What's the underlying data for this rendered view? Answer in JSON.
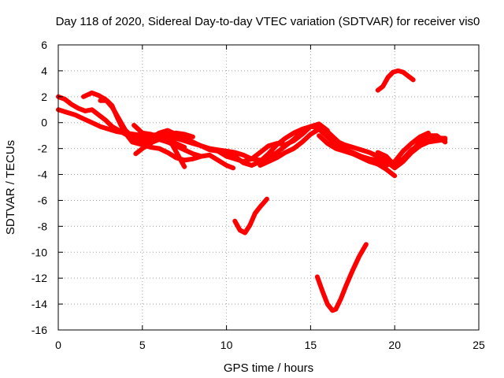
{
  "chart_data": {
    "type": "line",
    "title": "Day 118 of 2020, Sidereal Day-to-day VTEC variation (SDTVAR) for receiver vis0",
    "xlabel": "GPS time / hours",
    "ylabel": "SDTVAR / TECUs",
    "xlim": [
      0,
      25
    ],
    "ylim": [
      -16,
      6
    ],
    "xticks": [
      0,
      5,
      10,
      15,
      20,
      25
    ],
    "yticks": [
      -16,
      -14,
      -12,
      -10,
      -8,
      -6,
      -4,
      -2,
      0,
      2,
      4,
      6
    ],
    "grid": true,
    "legend": "none",
    "color": "#ff0000",
    "series": [
      {
        "x": [
          0.0,
          0.5,
          1.0,
          1.5,
          2.0,
          2.5,
          3.0,
          3.5,
          4.0,
          4.5,
          5.0,
          5.5,
          6.0,
          6.5,
          7.0,
          7.5,
          8.0,
          8.5,
          9.0,
          9.5,
          10.0,
          10.5,
          11.0,
          11.5,
          12.0,
          12.5,
          13.0,
          13.5,
          14.0,
          14.5,
          15.0,
          15.5,
          16.0,
          16.5,
          17.0,
          17.5,
          18.0,
          18.5,
          19.0,
          19.5,
          20.0,
          20.5,
          21.0,
          21.5,
          22.0,
          22.5,
          23.0
        ],
        "y": [
          1.0,
          0.8,
          0.6,
          0.3,
          0.0,
          -0.3,
          -0.5,
          -0.7,
          -0.8,
          -0.9,
          -1.0,
          -1.0,
          -0.9,
          -1.0,
          -1.2,
          -1.4,
          -1.6,
          -1.8,
          -2.0,
          -2.1,
          -2.2,
          -2.3,
          -2.5,
          -2.8,
          -2.9,
          -2.7,
          -2.3,
          -1.8,
          -1.3,
          -0.7,
          -0.3,
          -0.4,
          -0.9,
          -1.4,
          -1.7,
          -1.9,
          -2.1,
          -2.3,
          -2.6,
          -3.0,
          -3.5,
          -3.0,
          -2.3,
          -1.8,
          -1.5,
          -1.4,
          -1.3
        ]
      },
      {
        "x": [
          0.0,
          0.4,
          0.8,
          1.2,
          1.6,
          2.0,
          2.4,
          2.8,
          3.2,
          3.6,
          4.0,
          4.5,
          5.0,
          5.5,
          6.0,
          6.5,
          7.0,
          7.5
        ],
        "y": [
          2.0,
          1.8,
          1.4,
          1.1,
          0.9,
          1.0,
          0.6,
          0.2,
          -0.3,
          -0.6,
          -0.9,
          -1.2,
          -1.3,
          -1.1,
          -1.0,
          -1.2,
          -1.6,
          -1.9
        ]
      },
      {
        "x": [
          1.5,
          2.0,
          2.4,
          2.8,
          3.2,
          3.6,
          4.0,
          4.4,
          4.8,
          5.2,
          5.6,
          6.0,
          6.5,
          7.0,
          7.5,
          8.0,
          8.5
        ],
        "y": [
          2.0,
          2.3,
          2.1,
          1.8,
          1.2,
          0.3,
          -0.6,
          -1.1,
          -1.4,
          -1.6,
          -1.5,
          -1.3,
          -1.5,
          -1.8,
          -2.1,
          -2.4,
          -2.6
        ]
      },
      {
        "x": [
          2.5,
          2.9,
          3.2,
          3.5,
          3.8,
          4.1,
          4.4,
          4.7,
          5.0,
          5.5,
          6.0,
          6.5,
          7.0,
          7.5,
          8.0,
          8.5,
          9.0,
          9.5,
          10.0,
          10.4
        ],
        "y": [
          1.7,
          1.7,
          1.3,
          0.4,
          -0.4,
          -1.0,
          -1.5,
          -1.6,
          -1.7,
          -1.9,
          -2.0,
          -2.3,
          -2.7,
          -2.9,
          -2.8,
          -2.6,
          -2.5,
          -2.9,
          -3.3,
          -3.5
        ]
      },
      {
        "x": [
          4.5,
          5.0,
          5.5,
          6.0,
          6.5,
          7.0,
          7.5,
          8.0
        ],
        "y": [
          -0.2,
          -0.8,
          -0.9,
          -1.1,
          -1.0,
          -0.8,
          -0.9,
          -1.1
        ]
      },
      {
        "x": [
          4.6,
          5.0,
          5.5,
          6.0,
          6.3,
          6.6,
          6.9,
          7.2,
          7.5
        ],
        "y": [
          -2.4,
          -2.0,
          -1.6,
          -0.8,
          -0.8,
          -1.3,
          -2.0,
          -2.7,
          -3.4
        ]
      },
      {
        "x": [
          5.0,
          5.5,
          6.0,
          6.5,
          7.0,
          7.5,
          8.0,
          8.5,
          9.0,
          9.5,
          10.0,
          10.5,
          11.0,
          11.5,
          12.0,
          12.5,
          13.0,
          13.5,
          14.0,
          14.5,
          15.0,
          15.5,
          16.0
        ],
        "y": [
          -1.4,
          -1.2,
          -0.8,
          -0.6,
          -0.9,
          -1.2,
          -1.5,
          -1.8,
          -2.1,
          -2.2,
          -2.6,
          -2.8,
          -3.0,
          -2.8,
          -2.3,
          -1.8,
          -1.6,
          -1.7,
          -1.4,
          -0.9,
          -0.3,
          -0.1,
          -0.6
        ]
      },
      {
        "x": [
          10.0,
          10.5,
          11.0,
          11.5,
          12.0,
          12.5,
          13.0,
          13.5,
          14.0,
          14.5,
          15.0,
          15.5,
          16.0,
          16.5,
          17.0,
          17.5,
          18.0,
          18.5,
          19.0,
          19.5,
          20.0
        ],
        "y": [
          -2.4,
          -2.6,
          -3.1,
          -3.3,
          -3.0,
          -2.4,
          -1.7,
          -1.2,
          -0.8,
          -0.5,
          -0.3,
          -0.2,
          -0.7,
          -1.3,
          -1.9,
          -2.4,
          -2.7,
          -3.0,
          -3.2,
          -3.6,
          -4.1
        ]
      },
      {
        "x": [
          12.0,
          12.5,
          13.0,
          13.5,
          14.0,
          14.5,
          15.0,
          15.5,
          16.0,
          16.5,
          17.0,
          17.5,
          18.0,
          18.5,
          19.0,
          19.5,
          20.0,
          20.5,
          21.0,
          21.5,
          22.0
        ],
        "y": [
          -3.3,
          -3.0,
          -2.7,
          -2.3,
          -2.0,
          -1.5,
          -0.9,
          -0.5,
          -1.1,
          -1.7,
          -2.1,
          -2.3,
          -2.6,
          -2.9,
          -3.1,
          -3.3,
          -3.0,
          -2.2,
          -1.6,
          -1.1,
          -0.8
        ]
      },
      {
        "x": [
          15.5,
          16.0,
          16.5,
          17.0,
          17.5,
          18.0,
          18.5,
          19.0,
          19.5,
          20.0,
          20.5,
          21.0,
          21.5,
          22.0,
          22.5,
          23.0
        ],
        "y": [
          -1.0,
          -1.6,
          -2.0,
          -2.2,
          -2.4,
          -2.6,
          -2.8,
          -2.9,
          -3.1,
          -3.3,
          -2.8,
          -2.1,
          -1.7,
          -1.4,
          -1.2,
          -1.2
        ]
      },
      {
        "x": [
          19.0,
          19.5,
          20.0,
          20.5,
          21.0,
          21.5,
          22.0,
          22.5,
          23.0
        ],
        "y": [
          -2.3,
          -2.6,
          -3.3,
          -2.9,
          -2.2,
          -1.5,
          -1.0,
          -1.0,
          -1.5
        ]
      },
      {
        "x": [
          10.5,
          10.8,
          11.1,
          11.4,
          11.7,
          12.0,
          12.4
        ],
        "y": [
          -7.6,
          -8.3,
          -8.5,
          -7.9,
          -7.0,
          -6.5,
          -5.9
        ]
      },
      {
        "x": [
          15.4,
          15.7,
          16.0,
          16.3,
          16.5,
          16.8,
          17.1,
          17.5,
          17.9,
          18.3
        ],
        "y": [
          -11.9,
          -13.0,
          -14.0,
          -14.5,
          -14.4,
          -13.6,
          -12.6,
          -11.4,
          -10.3,
          -9.4
        ]
      },
      {
        "x": [
          19.0,
          19.3,
          19.6,
          19.9,
          20.2,
          20.5,
          20.8,
          21.1
        ],
        "y": [
          2.5,
          2.8,
          3.5,
          3.9,
          4.0,
          3.9,
          3.6,
          3.3
        ]
      }
    ]
  }
}
